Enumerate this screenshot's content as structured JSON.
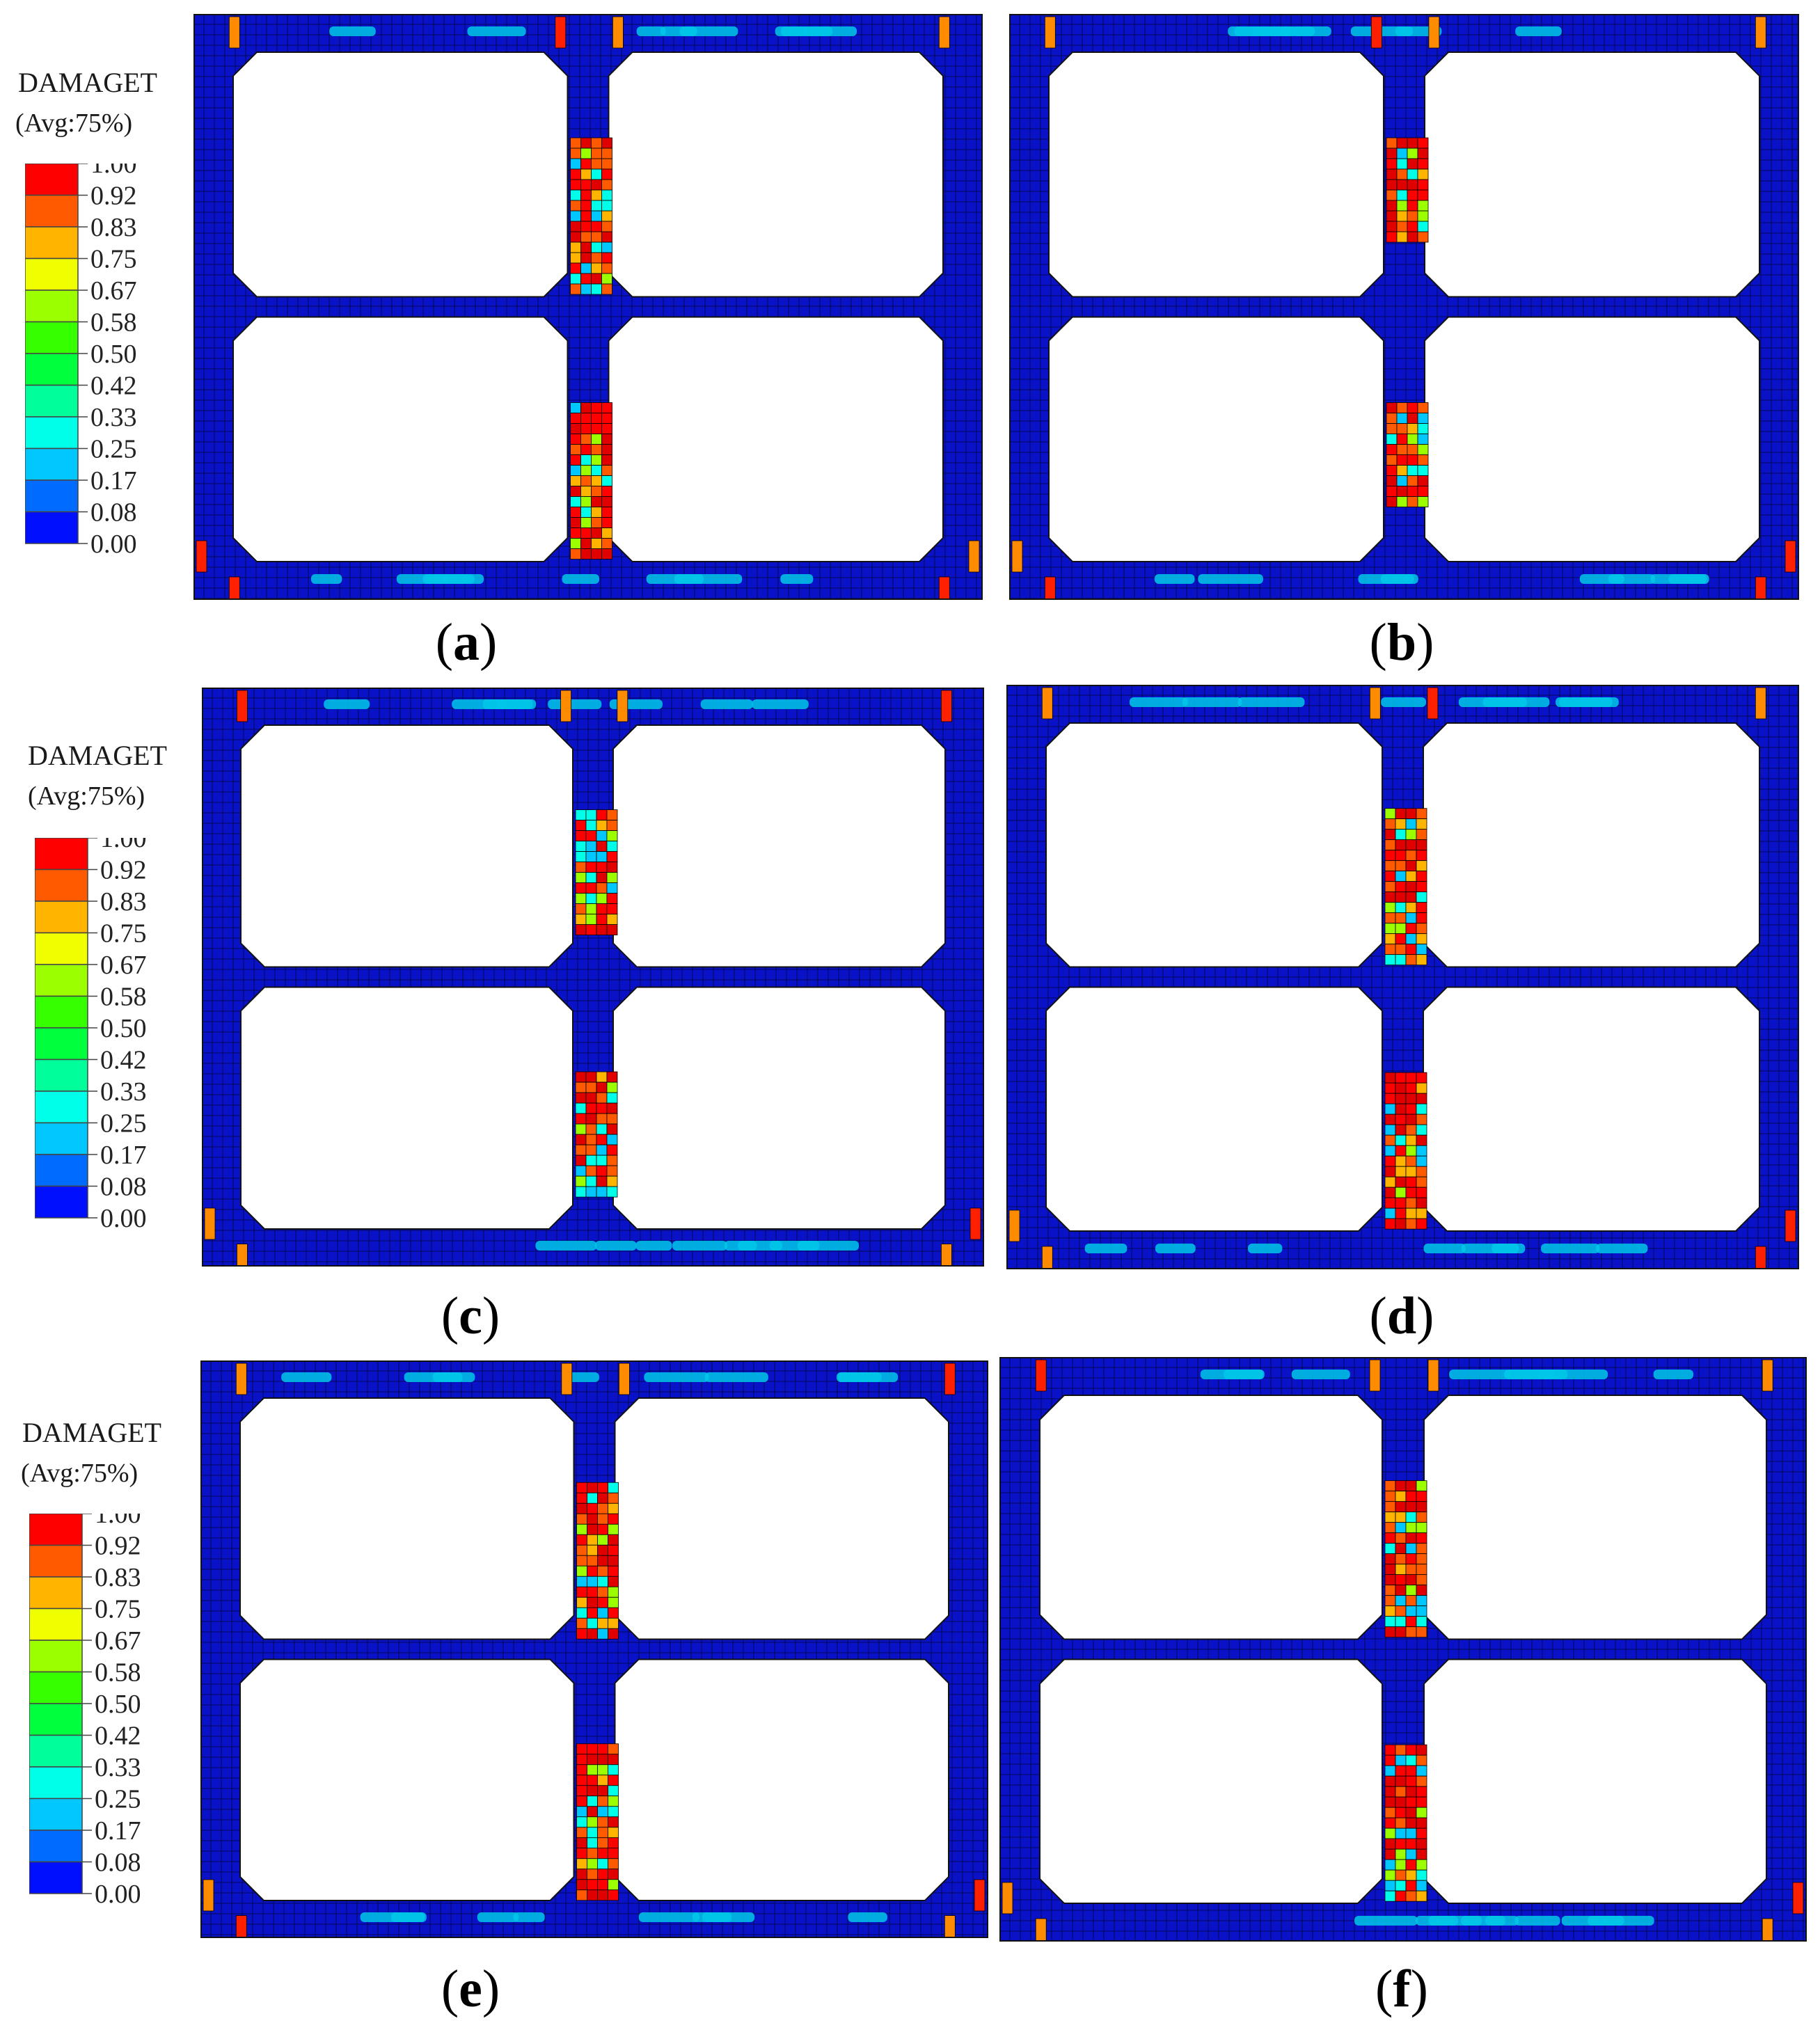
{
  "figure": {
    "panels": [
      {
        "id": "a",
        "label": "(a)",
        "caption_letter": "a",
        "has_legend": true
      },
      {
        "id": "b",
        "label": "(b)",
        "caption_letter": "b",
        "has_legend": false
      },
      {
        "id": "c",
        "label": "(c)",
        "caption_letter": "c",
        "has_legend": true
      },
      {
        "id": "d",
        "label": "(d)",
        "caption_letter": "d",
        "has_legend": false
      },
      {
        "id": "e",
        "label": "(e)",
        "caption_letter": "e",
        "has_legend": true
      },
      {
        "id": "f",
        "label": "(f)",
        "caption_letter": "f",
        "has_legend": false
      }
    ]
  },
  "legend": {
    "title": "DAMAGET",
    "subtitle": "(Avg:75%)",
    "ticks": [
      "1.00",
      "0.92",
      "0.83",
      "0.75",
      "0.67",
      "0.58",
      "0.50",
      "0.42",
      "0.33",
      "0.25",
      "0.17",
      "0.08",
      "0.00"
    ],
    "colors": [
      "#ff0000",
      "#ff5a00",
      "#ffb400",
      "#f0ff00",
      "#9cff00",
      "#36ff00",
      "#00ff3c",
      "#00ff9a",
      "#00ffe8",
      "#00c8ff",
      "#006cff",
      "#0010ff"
    ]
  },
  "colors": {
    "mesh_fill": "#0a12c8",
    "mesh_line": "#000000",
    "background": "#ffffff"
  }
}
